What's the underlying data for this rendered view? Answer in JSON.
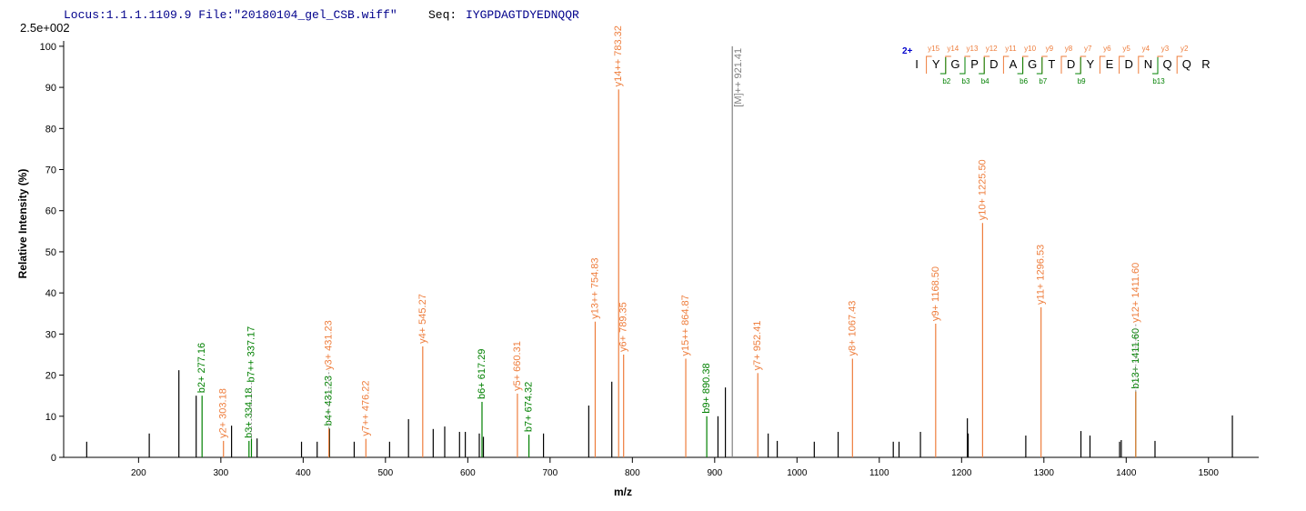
{
  "chart_data": {
    "type": "stem",
    "header": {
      "locus": "Locus:1.1.1.1109.9 File:\"20180104_gel_CSB.wiff\"",
      "seq_label": "Seq:",
      "seq": "IYGPDAGTDYEDNQQR"
    },
    "scale_note": "2.5e+002",
    "y_label": "Relative  Intensity (%)",
    "x_label": "m/z",
    "xlim": [
      109,
      1561
    ],
    "ylim": [
      0,
      101.3
    ],
    "xticks": [
      200,
      300,
      400,
      500,
      600,
      700,
      800,
      900,
      1000,
      1100,
      1200,
      1300,
      1400,
      1500
    ],
    "yticks": [
      0,
      10,
      20,
      30,
      40,
      50,
      60,
      70,
      80,
      90,
      100
    ],
    "peaks": {
      "color": "#000000",
      "x": [
        137,
        213,
        249,
        270,
        313,
        344,
        398,
        417,
        432,
        462,
        505,
        528,
        558,
        572,
        590,
        597,
        614,
        619,
        692,
        747,
        775,
        904,
        913,
        965,
        976,
        1021,
        1050,
        1117,
        1124,
        1150,
        1207,
        1208,
        1278,
        1345,
        1356,
        1392,
        1394,
        1435,
        1529
      ],
      "values": [
        3.8,
        5.8,
        21.2,
        15,
        7.7,
        4.6,
        3.8,
        3.8,
        7,
        3.8,
        3.8,
        9.3,
        6.9,
        7.5,
        6.2,
        6.2,
        5.8,
        5,
        5.8,
        12.6,
        18.4,
        10,
        17,
        5.8,
        4,
        3.8,
        6.2,
        3.8,
        3.8,
        6.2,
        9.5,
        5.8,
        5.3,
        6.4,
        5.3,
        3.8,
        4.2,
        4,
        10.2
      ]
    },
    "annotations": [
      {
        "label": "b2+ 277.16",
        "x": 277.16,
        "value": 15,
        "color": "#008000"
      },
      {
        "label": "y2+ 303.18",
        "x": 303.18,
        "value": 4,
        "color": "#ee7d3c"
      },
      {
        "label": "b3+ 334.18",
        "x": 334.18,
        "value": 4,
        "color": "#008000"
      },
      {
        "label": "b7++ 337.17",
        "x": 337.17,
        "value": 4.5,
        "color": "#008000"
      },
      {
        "label": "b4+ 431.23",
        "x": 431.23,
        "value": 7,
        "color": "#008000"
      },
      {
        "label": "y3+ 431.23",
        "x": 431.23,
        "value": 7,
        "color": "#ee7d3c"
      },
      {
        "label": "y7++ 476.22",
        "x": 476.22,
        "value": 4.5,
        "color": "#ee7d3c"
      },
      {
        "label": "y4+ 545.27",
        "x": 545.27,
        "value": 27,
        "color": "#ee7d3c"
      },
      {
        "label": "b6+ 617.29",
        "x": 617.29,
        "value": 13.5,
        "color": "#008000"
      },
      {
        "label": "y5+ 660.31",
        "x": 660.31,
        "value": 15.5,
        "color": "#ee7d3c"
      },
      {
        "label": "b7+ 674.32",
        "x": 674.32,
        "value": 5.5,
        "color": "#008000"
      },
      {
        "label": "y13++ 754.83",
        "x": 754.83,
        "value": 33,
        "color": "#ee7d3c"
      },
      {
        "label": "y14++ 783.32",
        "x": 783.32,
        "value": 89.5,
        "color": "#ee7d3c"
      },
      {
        "label": "y6+ 789.35",
        "x": 789.35,
        "value": 25,
        "color": "#ee7d3c"
      },
      {
        "label": "y15++ 864.87",
        "x": 864.87,
        "value": 24,
        "color": "#ee7d3c"
      },
      {
        "label": "b9+ 890.38",
        "x": 890.38,
        "value": 10,
        "color": "#008000"
      },
      {
        "label": "[M]++ 921.41",
        "x": 921.41,
        "value": 100,
        "color": "#808080"
      },
      {
        "label": "y7+ 952.41",
        "x": 952.41,
        "value": 20.5,
        "color": "#ee7d3c"
      },
      {
        "label": "y8+ 1067.43",
        "x": 1067.43,
        "value": 24,
        "color": "#ee7d3c"
      },
      {
        "label": "y9+ 1168.50",
        "x": 1168.5,
        "value": 32.5,
        "color": "#ee7d3c"
      },
      {
        "label": "y10+ 1225.50",
        "x": 1225.5,
        "value": 57,
        "color": "#ee7d3c"
      },
      {
        "label": "y11+ 1296.53",
        "x": 1296.53,
        "value": 36.5,
        "color": "#ee7d3c"
      },
      {
        "label": "b13+ 1411.60",
        "x": 1411.6,
        "value": 16,
        "color": "#008000"
      },
      {
        "label": "y12+ 1411.60",
        "x": 1411.6,
        "value": 16,
        "color": "#ee7d3c"
      }
    ],
    "sequence_panel": {
      "charge": "2+",
      "residues": [
        "I",
        "Y",
        "G",
        "P",
        "D",
        "A",
        "G",
        "T",
        "D",
        "Y",
        "E",
        "D",
        "N",
        "Q",
        "Q",
        "R"
      ],
      "y_ions": [
        "y15",
        "y14",
        "y13",
        "y12",
        "y11",
        "y10",
        "y9",
        "y8",
        "y7",
        "y6",
        "y5",
        "y4",
        "y3",
        "y2"
      ],
      "b_ions": [
        "b2",
        "b3",
        "b4",
        "b6",
        "b7",
        "b9",
        "b13"
      ]
    }
  }
}
